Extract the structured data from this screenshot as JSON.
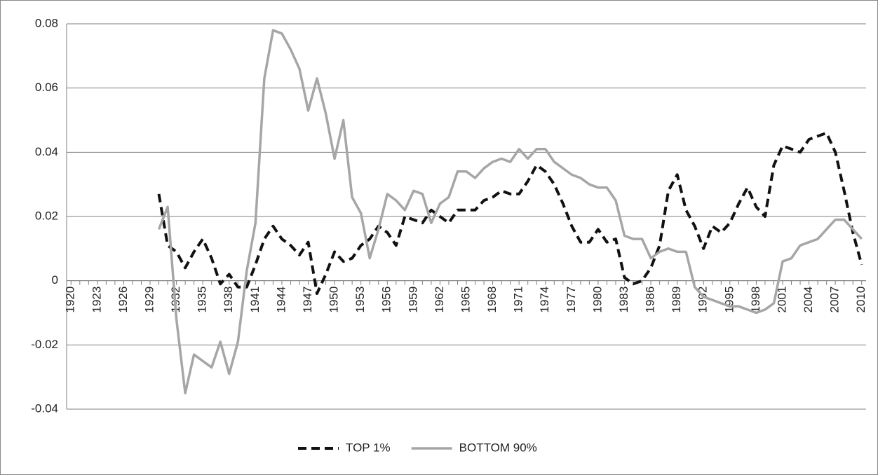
{
  "chart_data": {
    "type": "line",
    "x": [
      1920,
      1921,
      1922,
      1923,
      1924,
      1925,
      1926,
      1927,
      1928,
      1929,
      1930,
      1931,
      1932,
      1933,
      1934,
      1935,
      1936,
      1937,
      1938,
      1939,
      1940,
      1941,
      1942,
      1943,
      1944,
      1945,
      1946,
      1947,
      1948,
      1949,
      1950,
      1951,
      1952,
      1953,
      1954,
      1955,
      1956,
      1957,
      1958,
      1959,
      1960,
      1961,
      1962,
      1963,
      1964,
      1965,
      1966,
      1967,
      1968,
      1969,
      1970,
      1971,
      1972,
      1973,
      1974,
      1975,
      1976,
      1977,
      1978,
      1979,
      1980,
      1981,
      1982,
      1983,
      1984,
      1985,
      1986,
      1987,
      1988,
      1989,
      1990,
      1991,
      1992,
      1993,
      1994,
      1995,
      1996,
      1997,
      1998,
      1999,
      2000,
      2001,
      2002,
      2003,
      2004,
      2005,
      2006,
      2007,
      2008,
      2009,
      2010
    ],
    "xlim": [
      1919.5,
      2010.5
    ],
    "xticks": [
      1920,
      1923,
      1926,
      1929,
      1932,
      1935,
      1938,
      1941,
      1944,
      1947,
      1950,
      1953,
      1956,
      1959,
      1962,
      1965,
      1968,
      1971,
      1974,
      1977,
      1980,
      1983,
      1986,
      1989,
      1992,
      1995,
      1998,
      2001,
      2004,
      2007,
      2010
    ],
    "ylim": [
      -0.04,
      0.08
    ],
    "yticks": [
      0.08,
      0.06,
      0.04,
      0.02,
      0,
      -0.02,
      -0.04
    ],
    "grid": true,
    "legend": "bottom",
    "series": [
      {
        "name": "TOP 1%",
        "color": "#111111",
        "dash": true,
        "values": [
          null,
          null,
          null,
          null,
          null,
          null,
          null,
          null,
          null,
          null,
          0.027,
          0.011,
          0.009,
          0.004,
          0.009,
          0.013,
          0.007,
          -0.001,
          0.002,
          -0.002,
          -0.002,
          0.005,
          0.013,
          0.017,
          0.013,
          0.011,
          0.008,
          0.012,
          -0.004,
          0.002,
          0.009,
          0.006,
          0.007,
          0.011,
          0.013,
          0.017,
          0.015,
          0.011,
          0.02,
          0.019,
          0.018,
          0.022,
          0.02,
          0.018,
          0.022,
          0.022,
          0.022,
          0.025,
          0.026,
          0.028,
          0.027,
          0.027,
          0.031,
          0.036,
          0.034,
          0.03,
          0.024,
          0.017,
          0.012,
          0.012,
          0.016,
          0.012,
          0.013,
          0.001,
          -0.001,
          0.0,
          0.004,
          0.011,
          0.028,
          0.033,
          0.022,
          0.017,
          0.01,
          0.017,
          0.015,
          0.018,
          0.024,
          0.029,
          0.023,
          0.02,
          0.036,
          0.042,
          0.041,
          0.04,
          0.044,
          0.045,
          0.046,
          0.04,
          0.028,
          0.015,
          0.005
        ]
      },
      {
        "name": "BOTTOM 90%",
        "color": "#a6a6a6",
        "dash": false,
        "values": [
          null,
          null,
          null,
          null,
          null,
          null,
          null,
          null,
          null,
          null,
          0.016,
          0.023,
          -0.012,
          -0.035,
          -0.023,
          -0.025,
          -0.027,
          -0.019,
          -0.029,
          -0.019,
          0.003,
          0.018,
          0.063,
          0.078,
          0.077,
          0.072,
          0.066,
          0.053,
          0.063,
          0.052,
          0.038,
          0.05,
          0.026,
          0.021,
          0.007,
          0.016,
          0.027,
          0.025,
          0.022,
          0.028,
          0.027,
          0.018,
          0.024,
          0.026,
          0.034,
          0.034,
          0.032,
          0.035,
          0.037,
          0.038,
          0.037,
          0.041,
          0.038,
          0.041,
          0.041,
          0.037,
          0.035,
          0.033,
          0.032,
          0.03,
          0.029,
          0.029,
          0.025,
          0.014,
          0.013,
          0.013,
          0.007,
          0.009,
          0.01,
          0.009,
          0.009,
          -0.002,
          -0.005,
          -0.006,
          -0.007,
          -0.008,
          -0.008,
          -0.009,
          -0.01,
          -0.009,
          -0.007,
          0.006,
          0.007,
          0.011,
          0.012,
          0.013,
          0.016,
          0.019,
          0.019,
          0.016,
          0.013
        ]
      }
    ]
  }
}
